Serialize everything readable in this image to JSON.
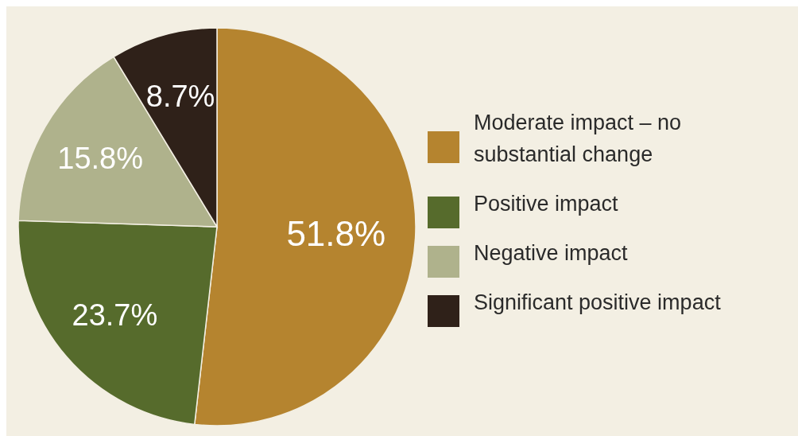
{
  "chart_data": {
    "type": "pie",
    "categories": [
      "Moderate impact – no substantial change",
      "Positive impact",
      "Negative impact",
      "Significant positive impact"
    ],
    "values": [
      51.8,
      23.7,
      15.8,
      8.7
    ],
    "colors": [
      "#b5842f",
      "#566b2c",
      "#afb28c",
      "#2f2119"
    ],
    "value_labels": [
      "51.8%",
      "23.7%",
      "15.8%",
      "8.7%"
    ],
    "legend": "right"
  }
}
